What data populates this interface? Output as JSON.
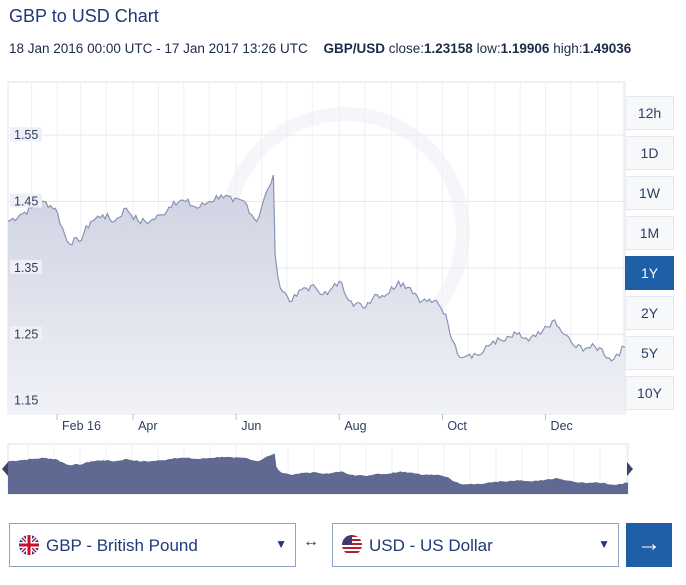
{
  "header": {
    "title": "GBP to USD Chart",
    "date_range": "18 Jan 2016 00:00 UTC - 17 Jan 2017 13:26 UTC",
    "pair": "GBP/USD",
    "close_label": "close:",
    "close_value": "1.23158",
    "low_label": "low:",
    "low_value": "1.19906",
    "high_label": "high:",
    "high_value": "1.49036"
  },
  "range_buttons": [
    {
      "label": "12h",
      "active": false
    },
    {
      "label": "1D",
      "active": false
    },
    {
      "label": "1W",
      "active": false
    },
    {
      "label": "1M",
      "active": false
    },
    {
      "label": "1Y",
      "active": true
    },
    {
      "label": "2Y",
      "active": false
    },
    {
      "label": "5Y",
      "active": false
    },
    {
      "label": "10Y",
      "active": false
    }
  ],
  "converter": {
    "from_label": "GBP - British Pound",
    "to_label": "USD - US Dollar",
    "swap_icon": "↔",
    "go_icon": "→"
  },
  "colors": {
    "accent": "#1f5fa8",
    "line": "#8a93b5",
    "fill": "#d9dce8",
    "navigator_fill": "#5f6991"
  },
  "chart_data": {
    "type": "area",
    "title": "GBP to USD Chart",
    "xlabel": "",
    "ylabel": "",
    "x_range": [
      "2016-01-18",
      "2017-01-17"
    ],
    "ylim": [
      1.13,
      1.63
    ],
    "y_ticks": [
      1.15,
      1.25,
      1.35,
      1.45,
      1.55
    ],
    "x_ticks": [
      {
        "label": "Feb 16",
        "date": "2016-02-16"
      },
      {
        "label": "Apr",
        "date": "2016-04-01"
      },
      {
        "label": "Jun",
        "date": "2016-06-01"
      },
      {
        "label": "Aug",
        "date": "2016-08-01"
      },
      {
        "label": "Oct",
        "date": "2016-10-01"
      },
      {
        "label": "Dec",
        "date": "2016-12-01"
      }
    ],
    "grid": true,
    "series": [
      {
        "name": "GBP/USD",
        "points": [
          [
            "2016-01-18",
            1.42
          ],
          [
            "2016-01-25",
            1.43
          ],
          [
            "2016-02-01",
            1.44
          ],
          [
            "2016-02-08",
            1.45
          ],
          [
            "2016-02-15",
            1.44
          ],
          [
            "2016-02-22",
            1.39
          ],
          [
            "2016-02-29",
            1.39
          ],
          [
            "2016-03-07",
            1.42
          ],
          [
            "2016-03-14",
            1.43
          ],
          [
            "2016-03-21",
            1.42
          ],
          [
            "2016-03-28",
            1.44
          ],
          [
            "2016-04-04",
            1.42
          ],
          [
            "2016-04-11",
            1.42
          ],
          [
            "2016-04-18",
            1.43
          ],
          [
            "2016-04-25",
            1.45
          ],
          [
            "2016-05-02",
            1.45
          ],
          [
            "2016-05-09",
            1.44
          ],
          [
            "2016-05-16",
            1.45
          ],
          [
            "2016-05-23",
            1.46
          ],
          [
            "2016-05-30",
            1.45
          ],
          [
            "2016-06-06",
            1.45
          ],
          [
            "2016-06-13",
            1.42
          ],
          [
            "2016-06-20",
            1.47
          ],
          [
            "2016-06-23",
            1.49
          ],
          [
            "2016-06-24",
            1.37
          ],
          [
            "2016-06-27",
            1.32
          ],
          [
            "2016-07-04",
            1.3
          ],
          [
            "2016-07-11",
            1.32
          ],
          [
            "2016-07-18",
            1.32
          ],
          [
            "2016-07-25",
            1.31
          ],
          [
            "2016-08-01",
            1.33
          ],
          [
            "2016-08-08",
            1.3
          ],
          [
            "2016-08-15",
            1.29
          ],
          [
            "2016-08-22",
            1.31
          ],
          [
            "2016-08-29",
            1.31
          ],
          [
            "2016-09-05",
            1.33
          ],
          [
            "2016-09-12",
            1.32
          ],
          [
            "2016-09-19",
            1.3
          ],
          [
            "2016-09-26",
            1.3
          ],
          [
            "2016-10-03",
            1.28
          ],
          [
            "2016-10-07",
            1.24
          ],
          [
            "2016-10-10",
            1.22
          ],
          [
            "2016-10-17",
            1.22
          ],
          [
            "2016-10-24",
            1.22
          ],
          [
            "2016-10-31",
            1.24
          ],
          [
            "2016-11-07",
            1.24
          ],
          [
            "2016-11-14",
            1.25
          ],
          [
            "2016-11-21",
            1.24
          ],
          [
            "2016-11-28",
            1.25
          ],
          [
            "2016-12-05",
            1.27
          ],
          [
            "2016-12-12",
            1.25
          ],
          [
            "2016-12-19",
            1.23
          ],
          [
            "2016-12-26",
            1.23
          ],
          [
            "2017-01-02",
            1.23
          ],
          [
            "2017-01-09",
            1.21
          ],
          [
            "2017-01-12",
            1.22
          ],
          [
            "2017-01-17",
            1.23
          ]
        ]
      }
    ]
  }
}
